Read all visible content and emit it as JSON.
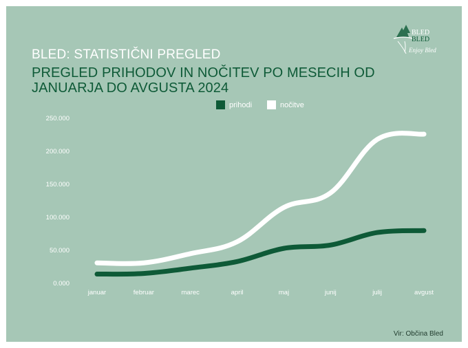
{
  "header": {
    "subtitle": "BLED: STATISTIČNI PREGLED",
    "title": "PREGLED PRIHODOV IN NOČITEV PO MESECIH OD JANUARJA DO AVGUSTA 2024"
  },
  "logo": {
    "line1": "BLED",
    "line2": "BLED",
    "tagline": "Enjoy Bled"
  },
  "source": "Vir: Občina Bled",
  "colors": {
    "background": "#a6c7b6",
    "prihodi": "#0e5a37",
    "nocitve": "#ffffff",
    "title": "#0e5a37"
  },
  "chart_data": {
    "type": "line",
    "title": "PREGLED PRIHODOV IN NOČITEV PO MESECIH OD JANUARJA DO AVGUSTA 2024",
    "categories": [
      "januar",
      "februar",
      "marec",
      "april",
      "maj",
      "junij",
      "julij",
      "avgust"
    ],
    "series": [
      {
        "name": "prihodi",
        "values": [
          14000,
          15000,
          23000,
          33000,
          53000,
          58000,
          77000,
          80000
        ]
      },
      {
        "name": "nočitve",
        "values": [
          31000,
          31000,
          45000,
          63000,
          115000,
          137000,
          218000,
          226000
        ]
      }
    ],
    "yticks": [
      "250.000",
      "200.000",
      "150.000",
      "100.000",
      "50.000",
      "0.000"
    ],
    "ylim": [
      0,
      250000
    ],
    "grid": false,
    "legend": "top-center"
  }
}
